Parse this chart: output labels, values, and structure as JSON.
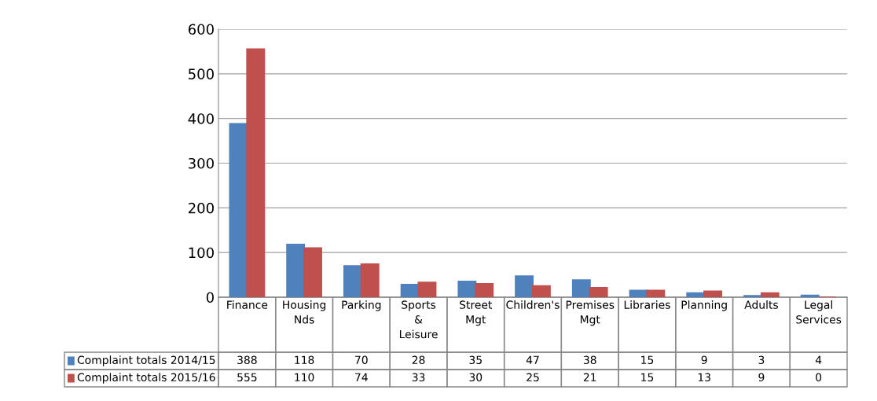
{
  "chart_data": {
    "type": "bar",
    "categories": [
      "Finance",
      "Housing Nds",
      "Parking",
      "Sports & Leisure",
      "Street Mgt",
      "Children's",
      "Premises Mgt",
      "Libraries",
      "Planning",
      "Adults",
      "Legal Services"
    ],
    "series": [
      {
        "name": "Complaint totals 2014/15",
        "color": "#4f81bd",
        "values": [
          388,
          118,
          70,
          28,
          35,
          47,
          38,
          15,
          9,
          3,
          4
        ]
      },
      {
        "name": "Complaint totals 2015/16",
        "color": "#c0504d",
        "values": [
          555,
          110,
          74,
          33,
          30,
          25,
          21,
          15,
          13,
          9,
          0
        ]
      }
    ],
    "ylim": [
      0,
      600
    ],
    "yticks": [
      0,
      100,
      200,
      300,
      400,
      500,
      600
    ],
    "grid": "y",
    "legend": "bottom left",
    "data_labels": true
  }
}
